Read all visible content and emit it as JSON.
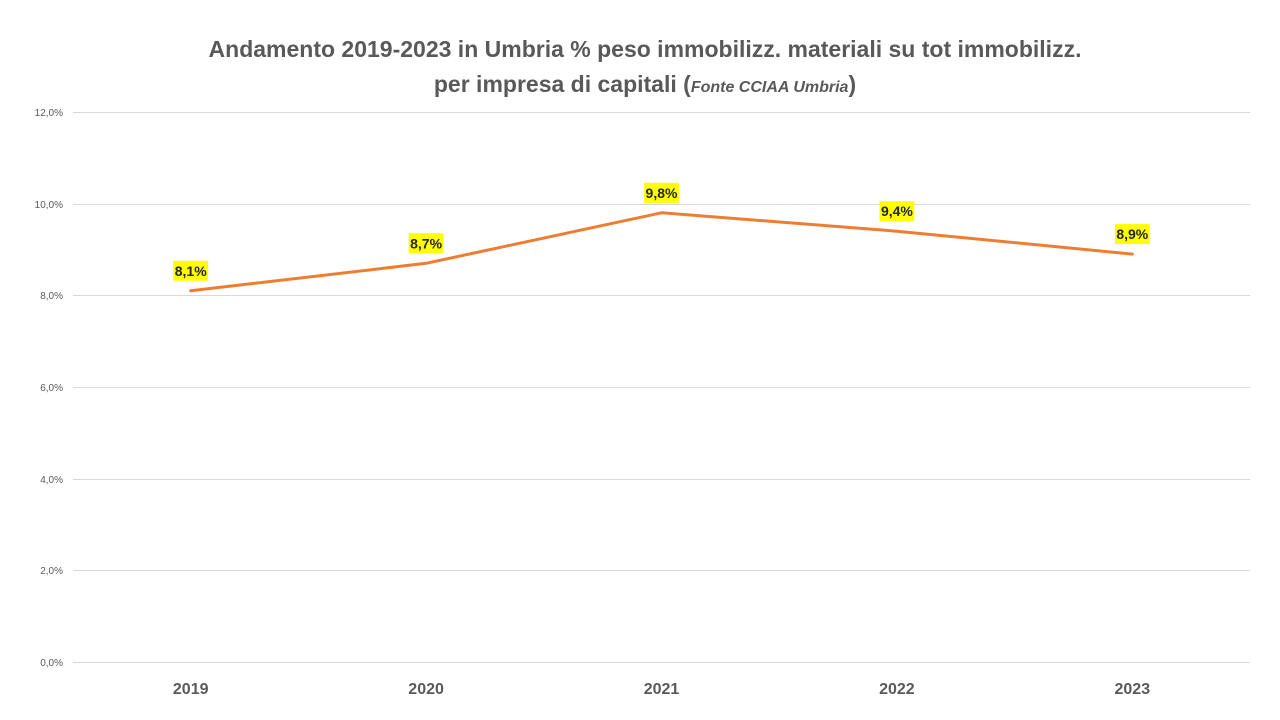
{
  "chart_data": {
    "type": "line",
    "title_line1": "Andamento 2019-2023 in Umbria % peso immobilizz. materiali su tot immobilizz.",
    "title_line2_main": "per impresa di capitali",
    "title_line2_source": "Fonte CCIAA Umbria",
    "title_line2_open": "(",
    "title_line2_close": ")",
    "categories": [
      "2019",
      "2020",
      "2021",
      "2022",
      "2023"
    ],
    "series": [
      {
        "values": [
          8.1,
          8.7,
          9.8,
          9.4,
          8.9
        ],
        "data_labels": [
          "8,1%",
          "8,7%",
          "9,8%",
          "9,4%",
          "8,9%"
        ],
        "color": "#ED7D31"
      }
    ],
    "y_ticks": [
      0,
      2,
      4,
      6,
      8,
      10,
      12
    ],
    "y_tick_labels": [
      "0,0%",
      "2,0%",
      "4,0%",
      "6,0%",
      "8,0%",
      "10,0%",
      "12,0%"
    ],
    "ylim": [
      0,
      12
    ],
    "grid": true,
    "legend": "none",
    "colors": {
      "gridline": "#D9D9D9",
      "label_highlight": "#FFFF00",
      "text": "#595959"
    }
  }
}
